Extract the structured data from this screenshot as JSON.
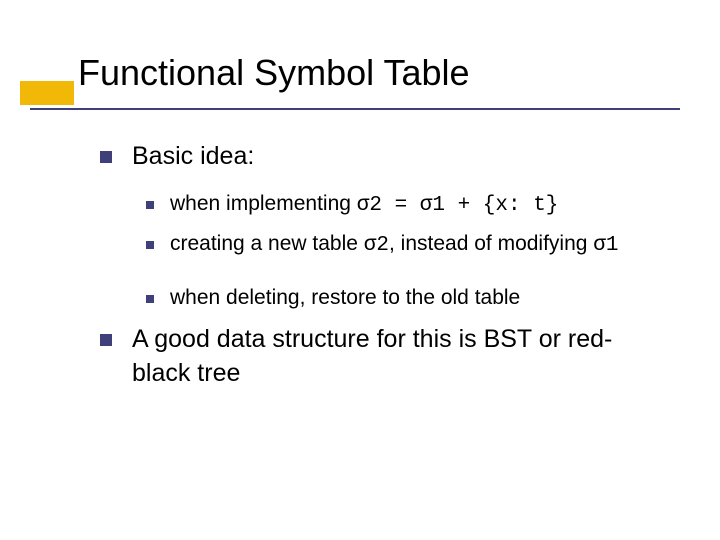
{
  "colors": {
    "accent": "#f2b807",
    "underline": "#3f3f7a",
    "bullet": "#3f3f7a",
    "text": "#000000",
    "background": "#ffffff"
  },
  "fonts": {
    "body": "Verdana, Geneva, sans-serif",
    "mono": "Courier New, Courier, monospace",
    "title_size": 36,
    "level1_size": 25,
    "level2_size": 21
  },
  "title": "Functional Symbol Table",
  "items": [
    {
      "level": 1,
      "text": "Basic idea:"
    },
    {
      "level": 2,
      "parts": [
        {
          "t": "when implementing ",
          "mono": false
        },
        {
          "t": "σ2 = σ1 + {x: t}",
          "mono": true
        }
      ]
    },
    {
      "level": 2,
      "parts": [
        {
          "t": "creating a new table ",
          "mono": false
        },
        {
          "t": "σ2",
          "mono": true
        },
        {
          "t": ", instead of modifying ",
          "mono": false
        },
        {
          "t": "σ1",
          "mono": true
        }
      ]
    },
    {
      "level": "gap"
    },
    {
      "level": 2,
      "text": "when deleting, restore to the old table"
    },
    {
      "level": 1,
      "text": "A good data structure for this is BST or red-black tree"
    }
  ]
}
